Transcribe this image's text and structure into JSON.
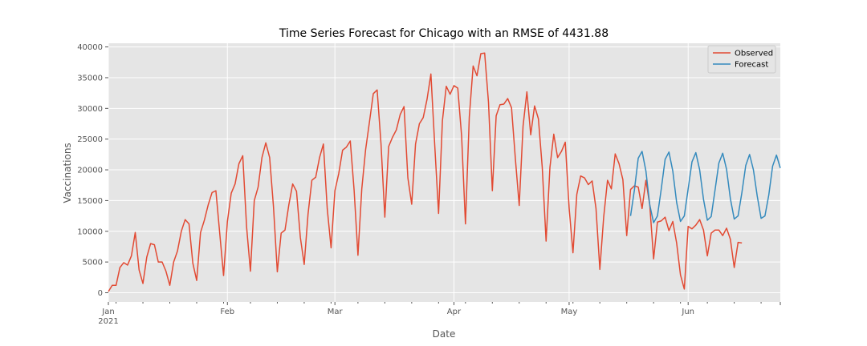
{
  "chart_data": {
    "type": "line",
    "title": "Time Series Forecast for Chicago with an RMSE of 4431.88",
    "xlabel": "Date",
    "ylabel": "Vaccinations",
    "x_start_date": "2021-01-01",
    "x_end_date": "2021-06-25",
    "ylim": [
      -1500,
      40600
    ],
    "yticks": [
      0,
      5000,
      10000,
      15000,
      20000,
      25000,
      30000,
      35000,
      40000
    ],
    "x_ticks": [
      {
        "date": "2021-01-01",
        "label": "Jan",
        "sublabel": "2021"
      },
      {
        "date": "2021-02-01",
        "label": "Feb",
        "sublabel": ""
      },
      {
        "date": "2021-03-01",
        "label": "Mar",
        "sublabel": ""
      },
      {
        "date": "2021-04-01",
        "label": "Apr",
        "sublabel": ""
      },
      {
        "date": "2021-05-01",
        "label": "May",
        "sublabel": ""
      },
      {
        "date": "2021-06-01",
        "label": "Jun",
        "sublabel": ""
      }
    ],
    "grid": true,
    "legend_position": "top-right",
    "series": [
      {
        "name": "Observed",
        "color": "#e24a33",
        "start_date": "2021-01-01",
        "values": [
          200,
          1200,
          1200,
          4100,
          4900,
          4500,
          6000,
          9800,
          3700,
          1500,
          5800,
          8000,
          7800,
          5000,
          5000,
          3500,
          1200,
          5000,
          6800,
          10000,
          11900,
          11200,
          4800,
          2000,
          9800,
          11800,
          14300,
          16300,
          16600,
          9700,
          2800,
          11600,
          16200,
          17700,
          21000,
          22300,
          10700,
          3500,
          15000,
          17200,
          22000,
          24400,
          22000,
          14000,
          3400,
          9700,
          10200,
          14300,
          17700,
          16500,
          9000,
          4600,
          12800,
          18300,
          18800,
          22000,
          24200,
          13700,
          7300,
          16600,
          19400,
          23200,
          23700,
          24700,
          16700,
          6100,
          16900,
          23300,
          27800,
          32400,
          33000,
          24300,
          12300,
          23800,
          25300,
          26500,
          29000,
          30300,
          18700,
          14400,
          24200,
          27500,
          28500,
          31500,
          35600,
          24000,
          12900,
          28000,
          33600,
          32300,
          33700,
          33300,
          25500,
          11200,
          28600,
          36900,
          35300,
          38900,
          39000,
          31000,
          16600,
          28800,
          30600,
          30700,
          31600,
          30100,
          21800,
          14200,
          27100,
          32700,
          25700,
          30400,
          28300,
          20400,
          8400,
          20400,
          25800,
          22000,
          23000,
          24500,
          13800,
          6500,
          16000,
          19000,
          18700,
          17600,
          18200,
          13700,
          3800,
          12300,
          18300,
          16900,
          22600,
          21000,
          18400,
          9300,
          16800,
          17400,
          17200,
          13700,
          18300,
          14300,
          5500,
          11500,
          11700,
          12300,
          10100,
          11600,
          8100,
          2900,
          600,
          10800,
          10400,
          11000,
          11900,
          10200,
          6000,
          9700,
          10200,
          10200,
          9300,
          10500,
          8700,
          4100,
          8200,
          8100
        ]
      },
      {
        "name": "Forecast",
        "color": "#348abd",
        "start_date": "2021-05-17",
        "values": [
          12500,
          16700,
          21900,
          23000,
          19800,
          14300,
          11400,
          12500,
          16900,
          21700,
          22900,
          19800,
          14700,
          11600,
          12500,
          16900,
          21300,
          22800,
          20000,
          15200,
          11800,
          12400,
          16700,
          21100,
          22700,
          20100,
          15300,
          12000,
          12500,
          16300,
          20700,
          22500,
          20000,
          15700,
          12100,
          12500,
          15900,
          20600,
          22400,
          20300
        ]
      }
    ]
  }
}
